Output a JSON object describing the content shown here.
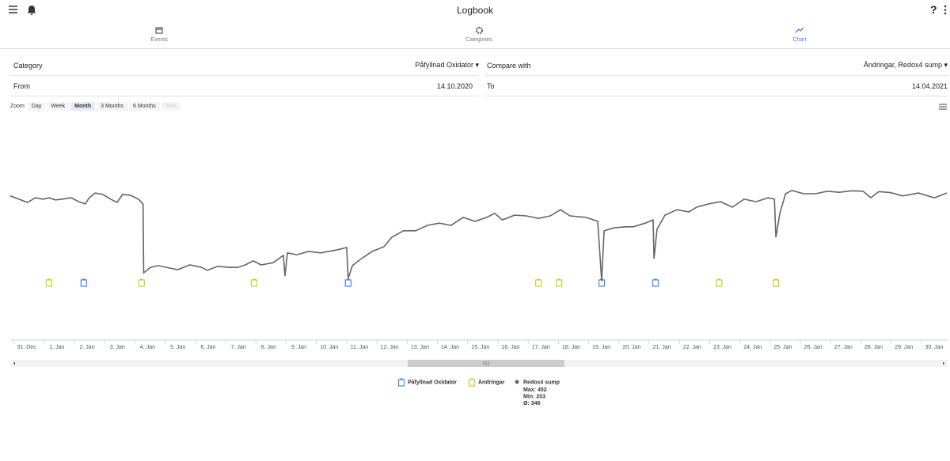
{
  "header": {
    "title": "Logbook"
  },
  "tabs": [
    {
      "label": "Events"
    },
    {
      "label": "Categories"
    },
    {
      "label": "Chart"
    }
  ],
  "filters": {
    "category_label": "Category",
    "category_value": "Påfyllnad Oxidator",
    "compare_label": "Compare with",
    "compare_value": "Ändringar, Redox4 sump",
    "from_label": "From",
    "from_value": "14.10.2020",
    "to_label": "To",
    "to_value": "14.04.2021"
  },
  "zoom": {
    "label": "Zoom",
    "buttons": [
      "Day",
      "Week",
      "Month",
      "3 Months",
      "6 Months",
      "Year"
    ]
  },
  "chart_data": {
    "type": "line",
    "xlim": [
      -0.54,
      30.42
    ],
    "ylim": [
      40,
      650
    ],
    "xticks": [
      {
        "value": 0,
        "label": "31. Dec"
      },
      {
        "value": 1,
        "label": "1. Jan"
      },
      {
        "value": 2,
        "label": "2. Jan"
      },
      {
        "value": 3,
        "label": "3. Jan"
      },
      {
        "value": 4,
        "label": "4. Jan"
      },
      {
        "value": 5,
        "label": "5. Jan"
      },
      {
        "value": 6,
        "label": "6. Jan"
      },
      {
        "value": 7,
        "label": "7. Jan"
      },
      {
        "value": 8,
        "label": "8. Jan"
      },
      {
        "value": 9,
        "label": "9. Jan"
      },
      {
        "value": 10,
        "label": "10. Jan"
      },
      {
        "value": 11,
        "label": "11. Jan"
      },
      {
        "value": 12,
        "label": "12. Jan"
      },
      {
        "value": 13,
        "label": "13. Jan"
      },
      {
        "value": 14,
        "label": "14. Jan"
      },
      {
        "value": 15,
        "label": "15. Jan"
      },
      {
        "value": 16,
        "label": "16. Jan"
      },
      {
        "value": 17,
        "label": "17. Jan"
      },
      {
        "value": 18,
        "label": "18. Jan"
      },
      {
        "value": 19,
        "label": "19. Jan"
      },
      {
        "value": 20,
        "label": "20. Jan"
      },
      {
        "value": 21,
        "label": "21. Jan"
      },
      {
        "value": 22,
        "label": "22. Jan"
      },
      {
        "value": 23,
        "label": "23. Jan"
      },
      {
        "value": 24,
        "label": "24. Jan"
      },
      {
        "value": 25,
        "label": "25. Jan"
      },
      {
        "value": 26,
        "label": "26. Jan"
      },
      {
        "value": 27,
        "label": "27. Jan"
      },
      {
        "value": 28,
        "label": "28. Jan"
      },
      {
        "value": 29,
        "label": "29. Jan"
      },
      {
        "value": 30,
        "label": "30. Jan"
      }
    ],
    "series": [
      {
        "name": "Påfyllnad Oxidator",
        "color": "#4a86e8",
        "x": [
          1.89,
          10.63,
          19.01,
          20.79
        ]
      },
      {
        "name": "Ändringar",
        "color": "#d6cc2a",
        "x": [
          0.74,
          3.8,
          7.52,
          16.92,
          17.6,
          22.89,
          24.77
        ]
      },
      {
        "name": "Redox4 sump",
        "color": "#666666",
        "x": [
          -0.54,
          0.03,
          0.29,
          0.55,
          0.74,
          0.95,
          1.16,
          1.47,
          1.73,
          1.94,
          2.07,
          2.26,
          2.52,
          2.78,
          2.99,
          3.17,
          3.43,
          3.7,
          3.85,
          3.87,
          4.09,
          4.35,
          4.74,
          5.0,
          5.39,
          5.79,
          5.97,
          6.31,
          6.71,
          6.97,
          7.23,
          7.49,
          7.75,
          8.15,
          8.49,
          8.54,
          8.62,
          8.93,
          9.32,
          9.72,
          10.24,
          10.58,
          10.63,
          10.77,
          11.03,
          11.42,
          11.81,
          12.07,
          12.46,
          12.86,
          13.25,
          13.64,
          14.03,
          14.43,
          14.82,
          15.21,
          15.47,
          15.73,
          16.13,
          16.52,
          16.92,
          17.31,
          17.65,
          17.96,
          18.49,
          18.88,
          19.01,
          19.09,
          19.41,
          19.8,
          20.06,
          20.45,
          20.71,
          20.74,
          20.84,
          21.1,
          21.5,
          21.89,
          22.15,
          22.54,
          22.94,
          23.33,
          23.72,
          24.11,
          24.51,
          24.72,
          24.77,
          24.9,
          25.09,
          25.29,
          25.69,
          26.08,
          26.47,
          26.86,
          27.26,
          27.65,
          27.91,
          28.17,
          28.56,
          28.96,
          29.48,
          30.01,
          30.42
        ],
        "values": [
          437,
          419,
          432,
          428,
          432,
          426,
          428,
          432,
          421,
          415,
          432,
          445,
          441,
          428,
          419,
          441,
          439,
          428,
          415,
          225,
          240,
          245,
          238,
          234,
          247,
          240,
          232,
          243,
          240,
          240,
          247,
          258,
          247,
          253,
          273,
          216,
          280,
          275,
          284,
          280,
          288,
          295,
          210,
          245,
          262,
          284,
          297,
          323,
          341,
          341,
          356,
          362,
          356,
          378,
          367,
          378,
          389,
          371,
          384,
          382,
          375,
          382,
          399,
          382,
          378,
          367,
          203,
          341,
          349,
          352,
          352,
          362,
          371,
          264,
          345,
          384,
          399,
          393,
          406,
          415,
          421,
          406,
          428,
          421,
          432,
          428,
          323,
          389,
          443,
          452,
          443,
          443,
          450,
          447,
          451,
          450,
          432,
          449,
          446,
          437,
          445,
          432,
          445
        ],
        "stats": [
          {
            "label": "Max:",
            "value": 452
          },
          {
            "label": "Min:",
            "value": 203
          },
          {
            "label": "Ø:",
            "value": 346
          }
        ]
      }
    ]
  }
}
